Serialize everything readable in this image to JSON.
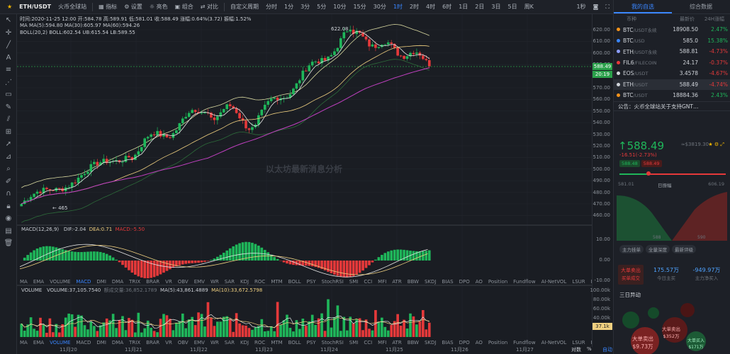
{
  "toolbar": {
    "pair": "ETH/USDT",
    "exchange": "火币全球站",
    "indicator": "指标",
    "settings": "设置",
    "theme": "亮色",
    "combo": "组合",
    "compare": "对比",
    "custom_period": "自定义周期",
    "periods": [
      "分时",
      "1分",
      "3分",
      "5分",
      "10分",
      "15分",
      "30分",
      "1时",
      "2时",
      "4时",
      "6时",
      "1日",
      "2日",
      "3日",
      "5日",
      "周K"
    ],
    "active_period": "1时",
    "right_label": "1秒"
  },
  "chart": {
    "info_line": "时间:2020-11-25 12:00  开:584.78  高:589.91  低:581.01  收:588.49  涨幅:0.64%(3.72)  振幅:1.52%",
    "ma_line": "MA  MA(5):594.80  MA(30):605.97  MA(60):594.26",
    "boll_line": "BOLL(20,2)  BOLL:602.54  UB:615.54  LB:589.55",
    "high_marker": "622.08",
    "low_marker": "465",
    "current_price_tag": "588.49",
    "countdown_tag": "20:19",
    "watermark": "以太坊最新消息分析",
    "macd_line": "MACD(12,26,9)",
    "macd_dif": "DIF:-2.04",
    "macd_dea": "DEA:0.71",
    "macd_val": "MACD:-5.50",
    "volume_line": "VOLUME",
    "volume_val": "VOLUME:37,105.7540",
    "volume_extra": "额成交量:36,852.1789",
    "volume_ma5": "MA(5):43,861.4889",
    "volume_ma10": "MA(10):33,672.5798",
    "volume_tag": "37.1k",
    "colors": {
      "up": "#1fb65a",
      "down": "#e5393a",
      "ma5": "#e8e8e8",
      "ma30": "#f0d080",
      "ma60": "#c040c0",
      "boll": "#d8d8a0",
      "accent": "#3a86ff"
    }
  },
  "price_scale": [
    "620.00",
    "610.00",
    "600.00",
    "590.00",
    "580.00",
    "570.00",
    "560.00",
    "550.00",
    "540.00",
    "530.00",
    "520.00",
    "510.00",
    "500.00",
    "490.00",
    "480.00",
    "470.00",
    "460.00"
  ],
  "macd_scale": [
    "10.00",
    "0.00",
    "-10.00"
  ],
  "volume_scale": [
    "100.00k",
    "80.00k",
    "60.00k",
    "40.00k",
    "20.00k"
  ],
  "time_axis": [
    "11月20",
    "11月21",
    "11月22",
    "11月23",
    "11月24",
    "11月25",
    "11月26",
    "11月27"
  ],
  "time_axis_right": [
    "对数",
    "%",
    "自动"
  ],
  "indicator_tabs": [
    "MA",
    "EMA",
    "VOLUME",
    "MACD",
    "DMI",
    "DMA",
    "TRIX",
    "BRAR",
    "VR",
    "OBV",
    "EMV",
    "WR",
    "SAR",
    "KDJ",
    "ROC",
    "MTM",
    "BOLL",
    "PSY",
    "StochRSI",
    "SMI",
    "CCI",
    "MFI",
    "ATR",
    "BBW",
    "SKDJ",
    "BIAS",
    "DPO",
    "AO",
    "Position",
    "Fundflow",
    "AI-NetVOL",
    "LSUR",
    "BASIS",
    "TVolume",
    "FTBS",
    "TTSI",
    "TTMU"
  ],
  "indicator_tabs_active_top": "MACD",
  "indicator_tabs_active_bottom": "VOLUME",
  "right_panel": {
    "tabs": [
      "我的自选",
      "综合数据"
    ],
    "head": [
      "币种",
      "最新价",
      "24H涨幅"
    ],
    "markets": [
      {
        "sym": "BTC",
        "quote": "/USDT永续",
        "price": "18908.50",
        "chg": "2.47%",
        "dir": "up",
        "color": "#f7931a"
      },
      {
        "sym": "BTC",
        "quote": "/USD",
        "price": "585.0",
        "chg": "15.38%",
        "dir": "up",
        "color": "#3a86ff"
      },
      {
        "sym": "ETH",
        "quote": "/USDT永续",
        "price": "588.81",
        "chg": "-4.73%",
        "dir": "down",
        "color": "#8c9eff"
      },
      {
        "sym": "FIL6",
        "quote": "/FILECOIN",
        "price": "24.17",
        "chg": "-0.37%",
        "dir": "down",
        "color": "#e5393a"
      },
      {
        "sym": "EOS",
        "quote": "/USDT",
        "price": "3.4578",
        "chg": "-4.67%",
        "dir": "down",
        "color": "#d0d4da"
      },
      {
        "sym": "ETH",
        "quote": "/USDT",
        "price": "588.49",
        "chg": "-4.74%",
        "dir": "down",
        "color": "#d0d4da"
      },
      {
        "sym": "BTC",
        "quote": "/USDT",
        "price": "18884.36",
        "chg": "2.43%",
        "dir": "up",
        "color": "#f7931a"
      }
    ],
    "notice": "公告：火币全球站关于支持GNT…",
    "big_price": "588.49",
    "usd_price": "≈$3819.30",
    "change": "-16.51(-2.73%)",
    "pill_up": "588.48",
    "pill_down": "588.49",
    "range_low": "581.01",
    "range_label": "日振幅",
    "range_high": "606.19",
    "depth_left": "588",
    "depth_right": "590",
    "btns": [
      "主力挂单",
      "全量深度",
      "最新评级"
    ],
    "big_sell_label": "大单卖出",
    "big_sell_sub": "买单成交",
    "inflow_value": "175.57万",
    "inflow_label": "今日主买",
    "outflow_value": "-949.97万",
    "outflow_label": "主力净买入",
    "section": "三日异动",
    "bubble1": "大单卖出",
    "bubble1_val": "$9.73万",
    "bubble2": "大单卖出",
    "bubble2_val": "$352万",
    "bubble3": "大单买入",
    "bubble3_val": "$171万"
  }
}
